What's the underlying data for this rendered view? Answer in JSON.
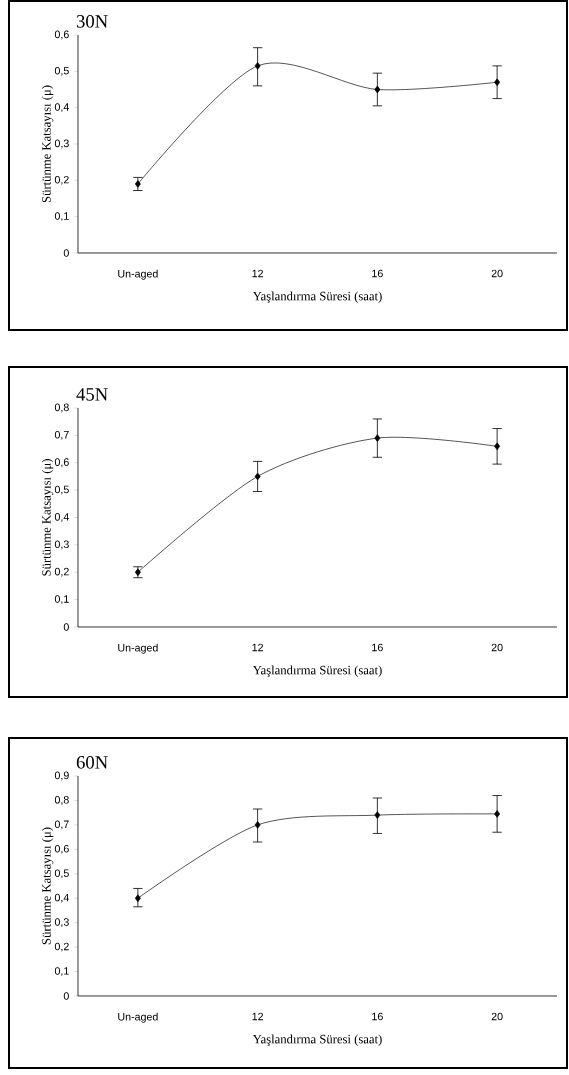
{
  "chart_data": [
    {
      "type": "line",
      "title": "30N",
      "xlabel": "Yaşlandırma Süresi (saat)",
      "ylabel": "Sürtünme Katsayısı (μ)",
      "categories": [
        "Un-aged",
        "12",
        "16",
        "20"
      ],
      "values": [
        0.19,
        0.515,
        0.45,
        0.47
      ],
      "errors": [
        [
          0.172,
          0.208
        ],
        [
          0.46,
          0.565
        ],
        [
          0.405,
          0.495
        ],
        [
          0.425,
          0.515
        ]
      ],
      "color": "#000000",
      "marker": "diamond",
      "ylim": [
        0,
        0.6
      ],
      "yticks": [
        0,
        {
          "value": 0.1,
          "label": "0,1"
        },
        {
          "value": 0.2,
          "label": "0,2"
        },
        {
          "value": 0.3,
          "label": "0,3"
        },
        {
          "value": 0.4,
          "label": "0,4"
        },
        {
          "value": 0.5,
          "label": "0,5"
        },
        {
          "value": 0.6,
          "label": "0,6"
        }
      ],
      "grid": false
    },
    {
      "type": "line",
      "title": "45N",
      "xlabel": "Yaşlandırma Süresi (saat)",
      "ylabel": "Sürtünme Katsayısı (μ)",
      "categories": [
        "Un-aged",
        "12",
        "16",
        "20"
      ],
      "values": [
        0.2,
        0.55,
        0.69,
        0.66
      ],
      "errors": [
        [
          0.18,
          0.22
        ],
        [
          0.495,
          0.605
        ],
        [
          0.62,
          0.76
        ],
        [
          0.595,
          0.725
        ]
      ],
      "color": "#000000",
      "marker": "diamond",
      "ylim": [
        0,
        0.8
      ],
      "yticks": [
        0,
        {
          "value": 0.1,
          "label": "0,1"
        },
        {
          "value": 0.2,
          "label": "0,2"
        },
        {
          "value": 0.3,
          "label": "0,3"
        },
        {
          "value": 0.4,
          "label": "0,4"
        },
        {
          "value": 0.5,
          "label": "0,5"
        },
        {
          "value": 0.6,
          "label": "0,6"
        },
        {
          "value": 0.7,
          "label": "0,7"
        },
        {
          "value": 0.8,
          "label": "0,8"
        }
      ],
      "grid": false
    },
    {
      "type": "line",
      "title": "60N",
      "xlabel": "Yaşlandırma Süresi (saat)",
      "ylabel": "Sürtünme Katsayısı (μ)",
      "categories": [
        "Un-aged",
        "12",
        "16",
        "20"
      ],
      "values": [
        0.4,
        0.7,
        0.74,
        0.745
      ],
      "errors": [
        [
          0.365,
          0.44
        ],
        [
          0.63,
          0.765
        ],
        [
          0.665,
          0.81
        ],
        [
          0.67,
          0.82
        ]
      ],
      "color": "#000000",
      "marker": "diamond",
      "ylim": [
        0,
        0.9
      ],
      "yticks": [
        0,
        {
          "value": 0.1,
          "label": "0,1"
        },
        {
          "value": 0.2,
          "label": "0,2"
        },
        {
          "value": 0.3,
          "label": "0,3"
        },
        {
          "value": 0.4,
          "label": "0,4"
        },
        {
          "value": 0.5,
          "label": "0,5"
        },
        {
          "value": 0.6,
          "label": "0,6"
        },
        {
          "value": 0.7,
          "label": "0,7"
        },
        {
          "value": 0.8,
          "label": "0,8"
        },
        {
          "value": 0.9,
          "label": "0,9"
        }
      ],
      "grid": false
    }
  ]
}
